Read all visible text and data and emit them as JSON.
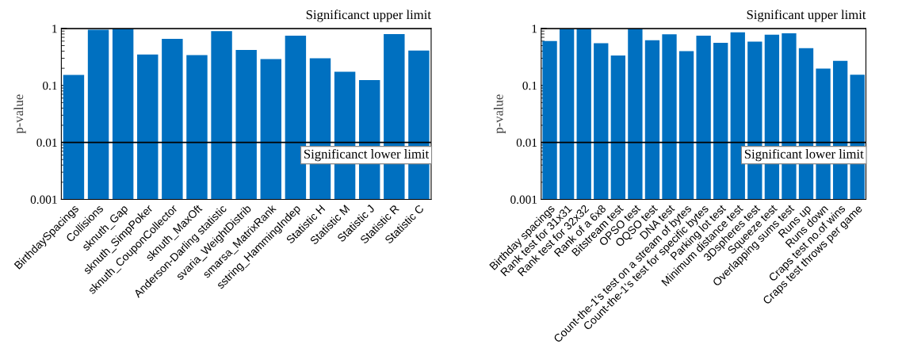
{
  "chart_data": [
    {
      "type": "bar",
      "ylabel": "p-value",
      "log": true,
      "grid": false,
      "legend": false,
      "categories": [
        "BirthdaySpacings",
        "Collisions",
        "sknuth_Gap",
        "sknuth_SimpPoker",
        "sknuth_CouponCollector",
        "sknuth_MaxOft",
        "Anderson-Darling statistic",
        "svaria_WeightDistrib",
        "smarsa_MatrixRank",
        "sstring_HammingIndep",
        "Statistic H",
        "Statistic M",
        "Statistic J",
        "Statistic R",
        "Statistic C"
      ],
      "series": [
        {
          "color": "#0070c0",
          "values": [
            0.153,
            0.95,
            1.0,
            0.35,
            0.66,
            0.34,
            0.9,
            0.42,
            0.29,
            0.75,
            0.3,
            0.174,
            0.124,
            0.8,
            0.41
          ]
        }
      ],
      "ylim": [
        0.001,
        1
      ],
      "yticks": [
        0.001,
        0.01,
        0.1,
        1
      ],
      "ref_lines": [
        {
          "axis": "y",
          "value": 1,
          "label": "Significanct upper limit",
          "color": "#000000"
        },
        {
          "axis": "y",
          "value": 0.01,
          "label": "Significanct lower limit",
          "color": "#000000"
        }
      ]
    },
    {
      "type": "bar",
      "ylabel": "p-value",
      "log": true,
      "grid": false,
      "legend": false,
      "categories": [
        "Birthday spacings",
        "Rank test for 31x31",
        "Rank test for 32x32",
        "Rank of a 6x8",
        "Bitstream test",
        "OPSO test",
        "OQSO test",
        "DNA test",
        "Count-the-1's test on a stream of bytes",
        "Count-the-1's test for specific bytes",
        "Parking lot test",
        "Minimum distance test",
        "3Dspheres test",
        "Squeeze test",
        "Overlapping sums test",
        "Runs up",
        "Runs down",
        "Craps test no.of wins",
        "Craps test throws per game"
      ],
      "series": [
        {
          "color": "#0070c0",
          "values": [
            0.6,
            0.98,
            1.0,
            0.55,
            0.335,
            1.0,
            0.62,
            0.79,
            0.4,
            0.75,
            0.56,
            0.86,
            0.59,
            0.78,
            0.82,
            0.45,
            0.198,
            0.27,
            0.154
          ]
        }
      ],
      "ylim": [
        0.001,
        1
      ],
      "yticks": [
        0.001,
        0.01,
        0.1,
        1
      ],
      "ref_lines": [
        {
          "axis": "y",
          "value": 1,
          "label": "Significant upper limit",
          "color": "#000000"
        },
        {
          "axis": "y",
          "value": 0.01,
          "label": "Significant lower limit",
          "color": "#000000"
        }
      ]
    }
  ]
}
